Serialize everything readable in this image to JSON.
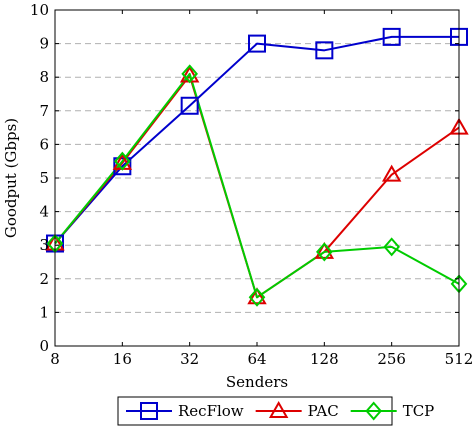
{
  "chart_data": {
    "type": "line",
    "title": "",
    "xlabel": "Senders",
    "ylabel": "Goodput (Gbps)",
    "categories": [
      "8",
      "16",
      "32",
      "64",
      "128",
      "256",
      "512"
    ],
    "ylim": [
      0,
      10
    ],
    "yticks": [
      0,
      1,
      2,
      3,
      4,
      5,
      6,
      7,
      8,
      9,
      10
    ],
    "grid": "horizontal dashed",
    "legend_position": "bottom",
    "series": [
      {
        "name": "RecFlow",
        "color": "#0000cc",
        "marker": "square",
        "values": [
          3.05,
          5.35,
          7.15,
          9.0,
          8.8,
          9.2,
          9.2
        ]
      },
      {
        "name": "PAC",
        "color": "#dd0000",
        "marker": "triangle",
        "values": [
          3.05,
          5.45,
          8.05,
          1.45,
          2.8,
          5.1,
          6.5
        ]
      },
      {
        "name": "TCP",
        "color": "#00cc00",
        "marker": "diamond",
        "values": [
          3.05,
          5.5,
          8.1,
          1.45,
          2.8,
          2.95,
          1.85
        ]
      }
    ]
  }
}
